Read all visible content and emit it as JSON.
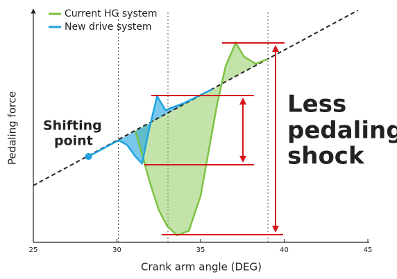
{
  "chart_data": {
    "type": "line",
    "xlabel": "Crank arm angle (DEG)",
    "ylabel": "Pedaling force",
    "xlim": [
      25,
      45
    ],
    "ylim": [
      0,
      100
    ],
    "xticks": [
      25,
      30,
      35,
      40,
      45
    ],
    "reference_line": {
      "x": [
        25,
        44.4
      ],
      "values": [
        24.5,
        100
      ]
    },
    "series": [
      {
        "name": "Current HG system",
        "color": "#7cc242",
        "x": [
          31.1,
          31.5,
          32,
          32.5,
          33,
          33.6,
          34.3,
          35,
          35.5,
          36,
          36.5,
          37.1,
          37.6,
          38.3,
          39
        ],
        "values": [
          48,
          38,
          25,
          14,
          7,
          3,
          5,
          20,
          40,
          60,
          76,
          86,
          80,
          77,
          79
        ]
      },
      {
        "name": "New drive system",
        "color": "#1fa3e0",
        "x": [
          28.3,
          30.1,
          30.6,
          31.1,
          31.5,
          31.9,
          32.4,
          32.9,
          34,
          35.7
        ],
        "values": [
          37,
          44,
          42,
          37,
          34,
          48,
          63,
          57,
          60,
          66
        ]
      }
    ],
    "annotations": [
      "Shifting",
      "point",
      "Less",
      "pedaling",
      "shock"
    ]
  }
}
